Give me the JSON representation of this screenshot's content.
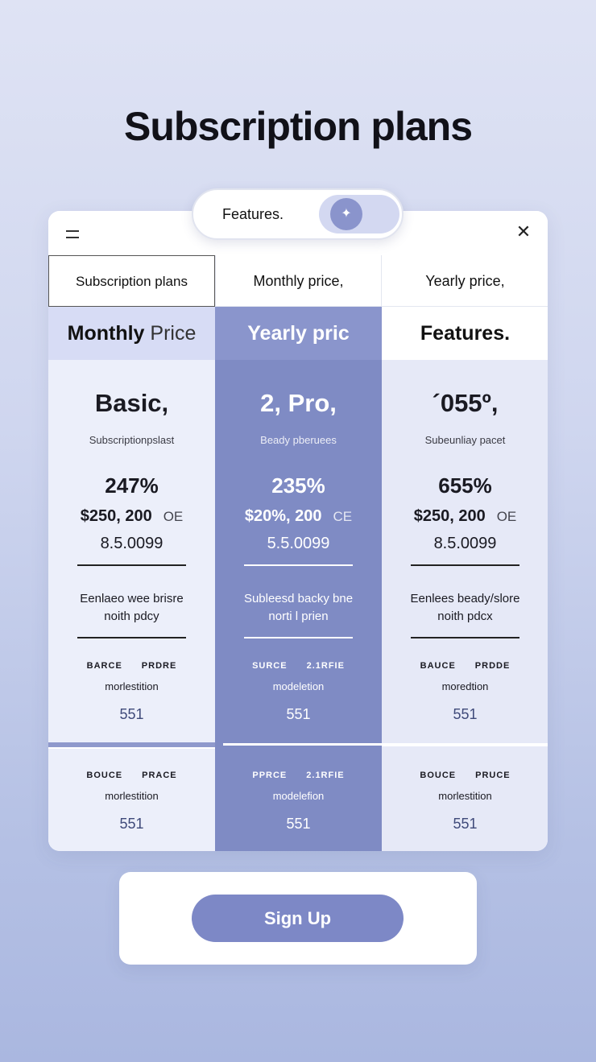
{
  "page": {
    "title": "Subscription plans"
  },
  "pill": {
    "label": "Features.",
    "toggle_icon": "sparkle-icon"
  },
  "columns": [
    {
      "header": "Subscription plans",
      "sub": "Monthly",
      "sub_light": " Price",
      "plan_name": "Basic,",
      "plan_sub": "Subscriptionpslast",
      "percent": "247%",
      "price": "$250, 200",
      "price_unit": "OE",
      "price_num": "8.5.0099",
      "desc_1": "Eenlaeo wee brisre",
      "desc_2": "noith pdcy",
      "sec1_label_a": "BARCE",
      "sec1_label_b": "PRDRE",
      "sec1_text": "morlestition",
      "sec1_count": "551",
      "sec2_label_a": "BOUCE",
      "sec2_label_b": "PRACE",
      "sec2_text": "morlestition",
      "sec2_count": "551"
    },
    {
      "header": "Monthly price,",
      "sub": "Yearly pric",
      "sub_light": "",
      "plan_name": "2, Pro,",
      "plan_sub": "Beady pberuees",
      "percent": "235%",
      "price": "$20%, 200",
      "price_unit": "CE",
      "price_num": "5.5.0099",
      "desc_1": "Subleesd backy bne",
      "desc_2": "norti l prien",
      "sec1_label_a": "SURCE",
      "sec1_label_b": "2.1RFIE",
      "sec1_text": "modeletion",
      "sec1_count": "551",
      "sec2_label_a": "PPRCE",
      "sec2_label_b": "2.1RFIE",
      "sec2_text": "modelefion",
      "sec2_count": "551"
    },
    {
      "header": "Yearly price,",
      "sub": "Features.",
      "sub_light": "",
      "plan_name": "´055º,",
      "plan_sub": "Subeunliay pacet",
      "percent": "655%",
      "price": "$250, 200",
      "price_unit": "OE",
      "price_num": "8.5.0099",
      "desc_1": "Eenlees beady/slore",
      "desc_2": "noith pdcx",
      "sec1_label_a": "BAUCE",
      "sec1_label_b": "PRDDE",
      "sec1_text": "moredtion",
      "sec1_count": "551",
      "sec2_label_a": "BOUCE",
      "sec2_label_b": "PRUCE",
      "sec2_text": "morlestition",
      "sec2_count": "551"
    }
  ],
  "signup": {
    "label": "Sign Up"
  },
  "colors": {
    "accent": "#7f8bc4",
    "background": "#cfd6ef"
  }
}
